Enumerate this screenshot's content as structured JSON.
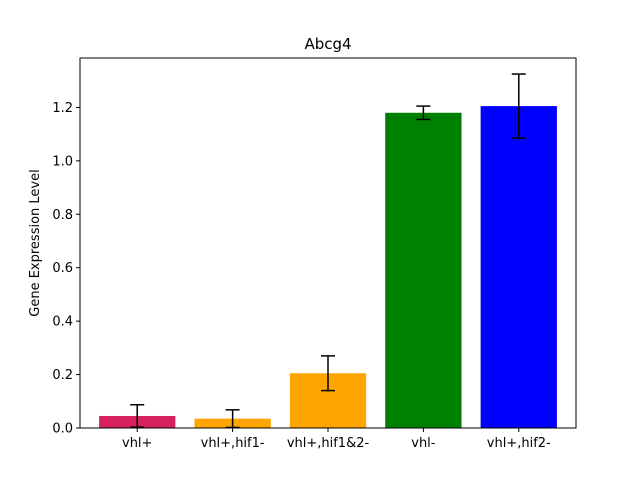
{
  "chart_data": {
    "type": "bar",
    "title": "Abcg4",
    "xlabel": "",
    "ylabel": "Gene Expression Level",
    "categories": [
      "vhl+",
      "vhl+,hif1-",
      "vhl+,hif1&2-",
      "vhl-",
      "vhl+,hif2-"
    ],
    "values": [
      0.045,
      0.035,
      0.205,
      1.18,
      1.205
    ],
    "errors": [
      0.042,
      0.033,
      0.065,
      0.025,
      0.12
    ],
    "colors": [
      "#d6215e",
      "#ffa500",
      "#ffa500",
      "#008000",
      "#0000ff"
    ],
    "ylim": [
      0,
      1.385
    ],
    "yticks": [
      "0.0",
      "0.2",
      "0.4",
      "0.6",
      "0.8",
      "1.0",
      "1.2"
    ],
    "grid": false,
    "legend": false
  }
}
